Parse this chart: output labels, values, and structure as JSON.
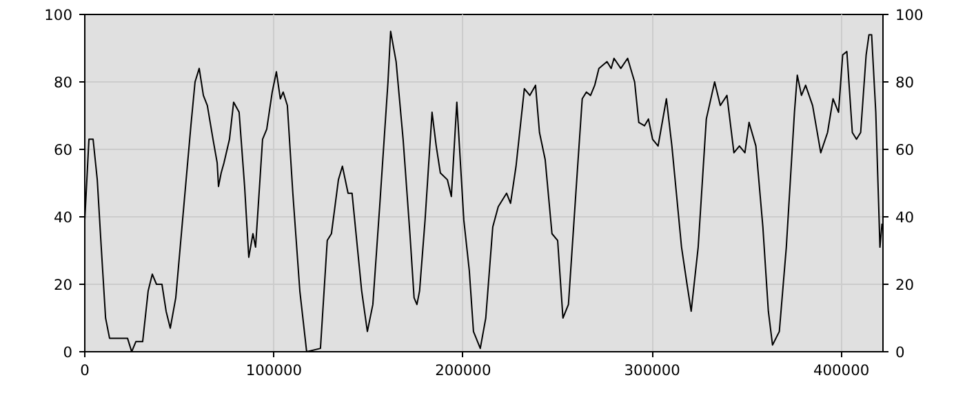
{
  "chart_data": {
    "type": "line",
    "xlim": [
      0,
      422000
    ],
    "ylim": [
      0,
      100
    ],
    "xticks": [
      0,
      100000,
      200000,
      300000,
      400000
    ],
    "yticks": [
      0,
      20,
      40,
      60,
      80,
      100
    ],
    "y2lim": [
      0,
      100
    ],
    "y2ticks": [
      0,
      20,
      40,
      60,
      80,
      100
    ],
    "grid": true,
    "marker": "none",
    "line_style": "solid",
    "series": [
      {
        "color": "#000000",
        "x": [
          0,
          2200,
          4400,
          6600,
          8700,
          11000,
          13100,
          22600,
          24800,
          27000,
          30600,
          33500,
          35700,
          37900,
          40800,
          43000,
          45200,
          48100,
          51700,
          56100,
          58300,
          60500,
          62700,
          64800,
          67800,
          70000,
          70700,
          72100,
          73600,
          76500,
          78700,
          81600,
          84500,
          86700,
          88900,
          90300,
          94000,
          96200,
          99100,
          101300,
          103400,
          104900,
          107100,
          110000,
          113700,
          117300,
          124600,
          128200,
          130400,
          134100,
          136200,
          139200,
          141300,
          146400,
          149400,
          152300,
          155900,
          160300,
          161700,
          164600,
          168300,
          171900,
          174100,
          175600,
          177000,
          179900,
          183600,
          185800,
          188000,
          191700,
          193800,
          196700,
          200400,
          203300,
          205500,
          209100,
          212000,
          215700,
          218600,
          223000,
          225100,
          228000,
          232400,
          235300,
          238300,
          240400,
          243400,
          247000,
          250000,
          252800,
          255700,
          260100,
          263000,
          265200,
          267400,
          269600,
          271800,
          276100,
          278300,
          279800,
          283400,
          287000,
          290700,
          292900,
          295900,
          298000,
          300200,
          303100,
          307500,
          310400,
          315500,
          318400,
          320600,
          324300,
          328600,
          333000,
          336000,
          339500,
          343200,
          346100,
          349000,
          351200,
          354800,
          358500,
          361400,
          363600,
          367200,
          370900,
          375200,
          376700,
          378900,
          381100,
          384800,
          389100,
          392700,
          395600,
          398500,
          400700,
          402900,
          405800,
          408000,
          410200,
          413100,
          414600,
          416000,
          418200,
          420400,
          421500
        ],
        "values": [
          39,
          63,
          63,
          51,
          31,
          10,
          4,
          4,
          0,
          3,
          3,
          18,
          23,
          20,
          20,
          12,
          7,
          16,
          39,
          67,
          80,
          84,
          76,
          73,
          63,
          56,
          49,
          53,
          56,
          63,
          74,
          71,
          49,
          28,
          35,
          31,
          63,
          66,
          77,
          83,
          75,
          77,
          73,
          47,
          18,
          0,
          1,
          33,
          35,
          51,
          55,
          47,
          47,
          18,
          6,
          14,
          43,
          80,
          95,
          86,
          63,
          35,
          16,
          14,
          18,
          39,
          71,
          61,
          53,
          51,
          46,
          74,
          39,
          24,
          6,
          1,
          10,
          37,
          43,
          47,
          44,
          55,
          78,
          76,
          79,
          65,
          57,
          35,
          33,
          10,
          14,
          51,
          75,
          77,
          76,
          79,
          84,
          86,
          84,
          87,
          84,
          87,
          80,
          68,
          67,
          69,
          63,
          61,
          75,
          61,
          31,
          20,
          12,
          31,
          69,
          80,
          73,
          76,
          59,
          61,
          59,
          68,
          61,
          37,
          12,
          2,
          6,
          31,
          71,
          82,
          76,
          79,
          73,
          59,
          65,
          75,
          71,
          88,
          89,
          65,
          63,
          65,
          88,
          94,
          94,
          71,
          31,
          38
        ]
      }
    ]
  }
}
